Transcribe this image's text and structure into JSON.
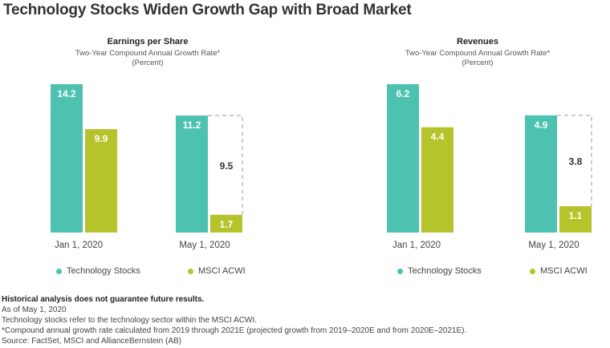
{
  "title": "Technology Stocks Widen Growth Gap with Broad Market",
  "colors": {
    "tech": "#4dc2b0",
    "acwi": "#b5c42a",
    "gap_border": "#aaaaaa"
  },
  "chart_data": [
    {
      "type": "bar",
      "title": "Earnings per Share",
      "subtitle": "Two-Year Compound Annual Growth Rate*",
      "unit": "(Percent)",
      "categories": [
        "Jan 1, 2020",
        "May 1, 2020"
      ],
      "series": [
        {
          "name": "Technology Stocks",
          "values": [
            14.2,
            11.2
          ],
          "labels": [
            "14.2",
            "11.2"
          ]
        },
        {
          "name": "MSCI ACWI",
          "values": [
            9.9,
            1.7
          ],
          "labels": [
            "9.9",
            "1.7"
          ]
        }
      ],
      "gap": {
        "category": "May 1, 2020",
        "value": 9.5,
        "label": "9.5"
      },
      "ylim": [
        0,
        14.2
      ],
      "legend": "bottom"
    },
    {
      "type": "bar",
      "title": "Revenues",
      "subtitle": "Two-Year Compound Annual Growth Rate*",
      "unit": "(Percent)",
      "categories": [
        "Jan 1, 2020",
        "May 1, 2020"
      ],
      "series": [
        {
          "name": "Technology Stocks",
          "values": [
            6.2,
            4.9
          ],
          "labels": [
            "6.2",
            "4.9"
          ]
        },
        {
          "name": "MSCI ACWI",
          "values": [
            4.4,
            1.1
          ],
          "labels": [
            "4.4",
            "1.1"
          ]
        }
      ],
      "gap": {
        "category": "May 1, 2020",
        "value": 3.8,
        "label": "3.8"
      },
      "ylim": [
        0,
        6.2
      ],
      "legend": "bottom"
    }
  ],
  "notes": {
    "disclaimer": "Historical analysis does not guarantee future results.",
    "as_of": "As of May 1, 2020",
    "tech_def": "Technology stocks refer to the technology sector within the MSCI ACWI.",
    "cagr_note": "*Compound annual growth rate calculated from 2019 through 2021E (projected growth from 2019–2020E and from 2020E–2021E).",
    "source": "Source: FactSet, MSCI and AllianceBernstein (AB)"
  }
}
